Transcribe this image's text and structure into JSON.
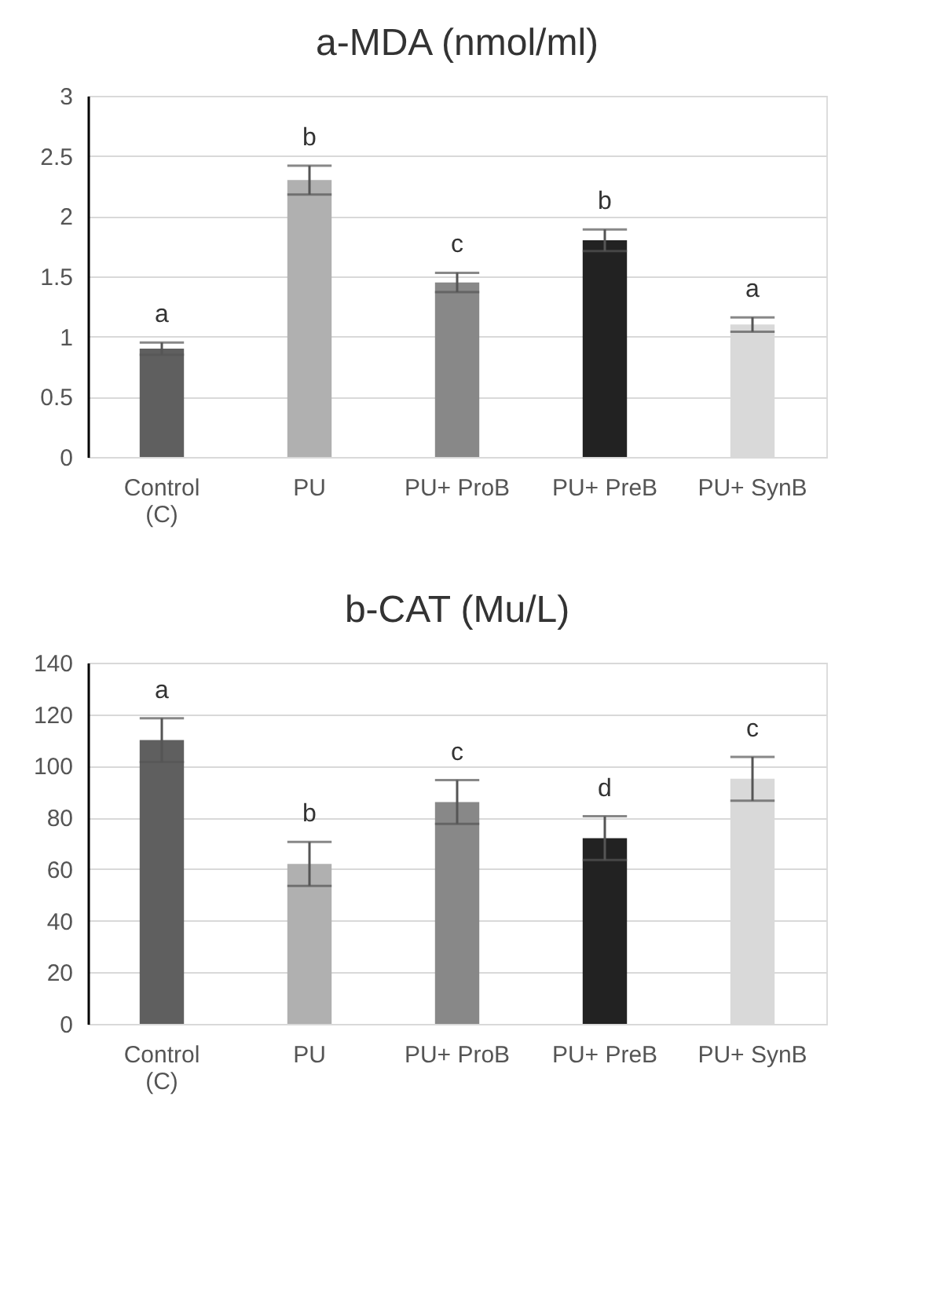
{
  "chart_data": [
    {
      "type": "bar",
      "title": "a-MDA (nmol/ml)",
      "categories": [
        "Control (C)",
        "PU",
        "PU+ ProB",
        "PU+ PreB",
        "PU+ SynB"
      ],
      "values": [
        0.9,
        2.3,
        1.45,
        1.8,
        1.1
      ],
      "errors": [
        0.05,
        0.12,
        0.08,
        0.09,
        0.06
      ],
      "colors": [
        "#5f5f5f",
        "#b0b0b0",
        "#888888",
        "#222222",
        "#d9d9d9"
      ],
      "ylim": [
        0,
        3
      ],
      "yticks": [
        0,
        0.5,
        1,
        1.5,
        2,
        2.5,
        3
      ],
      "grid": "y",
      "annotations": [
        {
          "text": "a",
          "x": "Control (C)",
          "y": 0.9
        },
        {
          "text": "b",
          "x": "PU",
          "y": 2.3
        },
        {
          "text": "c",
          "x": "PU+ ProB",
          "y": 1.45
        },
        {
          "text": "b",
          "x": "PU+ PreB",
          "y": 1.8
        },
        {
          "text": "a",
          "x": "PU+ SynB",
          "y": 1.1
        }
      ]
    },
    {
      "type": "bar",
      "title": "b-CAT (Mu/L)",
      "categories": [
        "Control (C)",
        "PU",
        "PU+ ProB",
        "PU+ PreB",
        "PU+ SynB"
      ],
      "values": [
        110,
        62,
        86,
        72,
        95
      ],
      "errors": [
        8.5,
        8.5,
        8.5,
        8.5,
        8.5
      ],
      "colors": [
        "#5f5f5f",
        "#b0b0b0",
        "#888888",
        "#222222",
        "#d9d9d9"
      ],
      "ylim": [
        0,
        140
      ],
      "yticks": [
        0,
        20,
        40,
        60,
        80,
        100,
        120,
        140
      ],
      "grid": "y",
      "annotations": [
        {
          "text": "a",
          "x": "Control (C)",
          "y": 110
        },
        {
          "text": "b",
          "x": "PU",
          "y": 62
        },
        {
          "text": "c",
          "x": "PU+ ProB",
          "y": 86
        },
        {
          "text": "d",
          "x": "PU+ PreB",
          "y": 72
        },
        {
          "text": "c",
          "x": "PU+ SynB",
          "y": 95
        }
      ]
    }
  ]
}
